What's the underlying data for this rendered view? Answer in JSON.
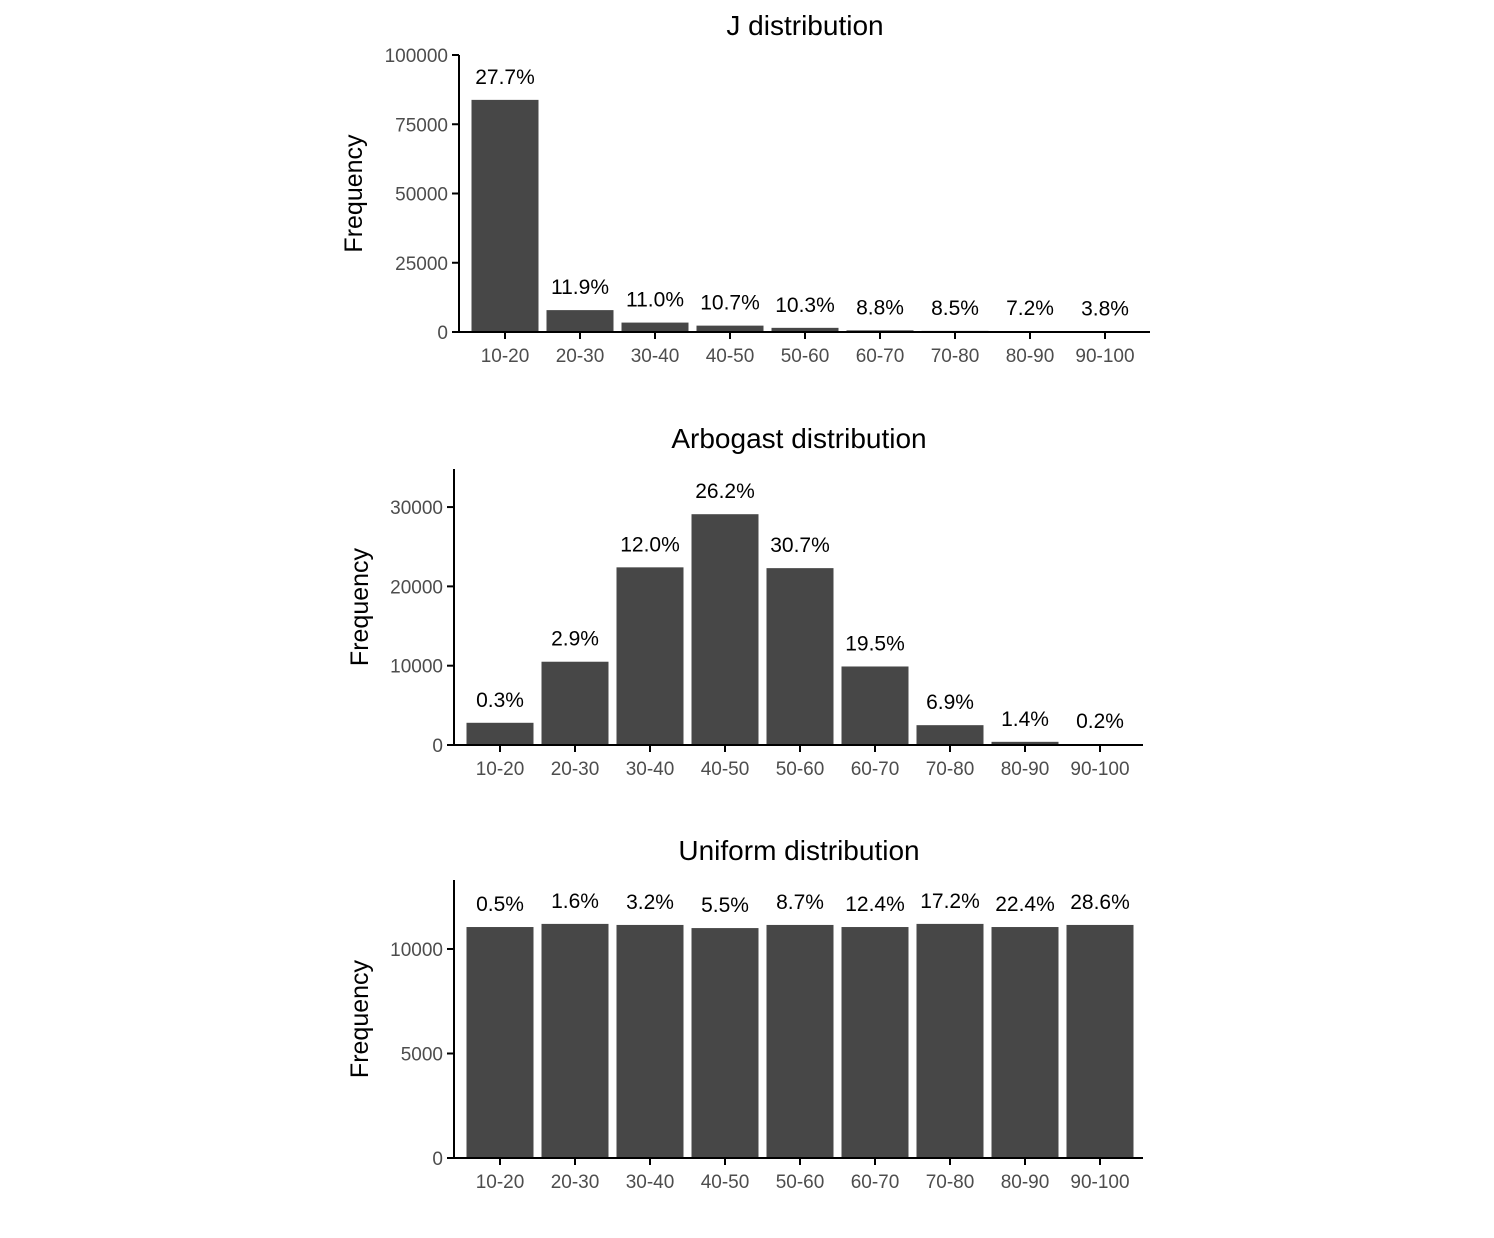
{
  "chart_data": [
    {
      "type": "bar",
      "title": "J distribution",
      "xlabel": "",
      "ylabel": "Frequency",
      "ylim": [
        0,
        100000
      ],
      "yticks": [
        0,
        25000,
        50000,
        75000,
        100000
      ],
      "ytick_labels": [
        "0",
        "25000",
        "50000",
        "75000",
        "100000"
      ],
      "categories": [
        "10-20",
        "20-30",
        "30-40",
        "40-50",
        "50-60",
        "60-70",
        "70-80",
        "80-90",
        "90-100"
      ],
      "values": [
        83800,
        7900,
        3400,
        2300,
        1500,
        600,
        400,
        300,
        200
      ],
      "labels": [
        "27.7%",
        "11.9%",
        "11.0%",
        "10.7%",
        "10.3%",
        "8.8%",
        "8.5%",
        "7.2%",
        "3.8%"
      ],
      "bar_color": "#474747",
      "grid": false
    },
    {
      "type": "bar",
      "title": "Arbogast distribution",
      "xlabel": "",
      "ylabel": "Frequency",
      "ylim": [
        0,
        34800
      ],
      "yticks": [
        0,
        10000,
        20000,
        30000
      ],
      "ytick_labels": [
        "0",
        "10000",
        "20000",
        "30000"
      ],
      "categories": [
        "10-20",
        "20-30",
        "30-40",
        "40-50",
        "50-60",
        "60-70",
        "70-80",
        "80-90",
        "90-100"
      ],
      "values": [
        2800,
        10500,
        22400,
        29100,
        22300,
        9900,
        2500,
        400,
        100
      ],
      "labels": [
        "0.3%",
        "2.9%",
        "12.0%",
        "26.2%",
        "30.7%",
        "19.5%",
        "6.9%",
        "1.4%",
        "0.2%"
      ],
      "bar_color": "#474747",
      "grid": false
    },
    {
      "type": "bar",
      "title": "Uniform distribution",
      "xlabel": "",
      "ylabel": "Frequency",
      "ylim": [
        0,
        13300
      ],
      "yticks": [
        0,
        5000,
        10000
      ],
      "ytick_labels": [
        "0",
        "5000",
        "10000"
      ],
      "categories": [
        "10-20",
        "20-30",
        "30-40",
        "40-50",
        "50-60",
        "60-70",
        "70-80",
        "80-90",
        "90-100"
      ],
      "values": [
        11050,
        11200,
        11150,
        11000,
        11150,
        11050,
        11200,
        11050,
        11150
      ],
      "labels": [
        "0.5%",
        "1.6%",
        "3.2%",
        "5.5%",
        "8.7%",
        "12.4%",
        "17.2%",
        "22.4%",
        "28.6%"
      ],
      "bar_color": "#474747",
      "grid": false
    }
  ]
}
